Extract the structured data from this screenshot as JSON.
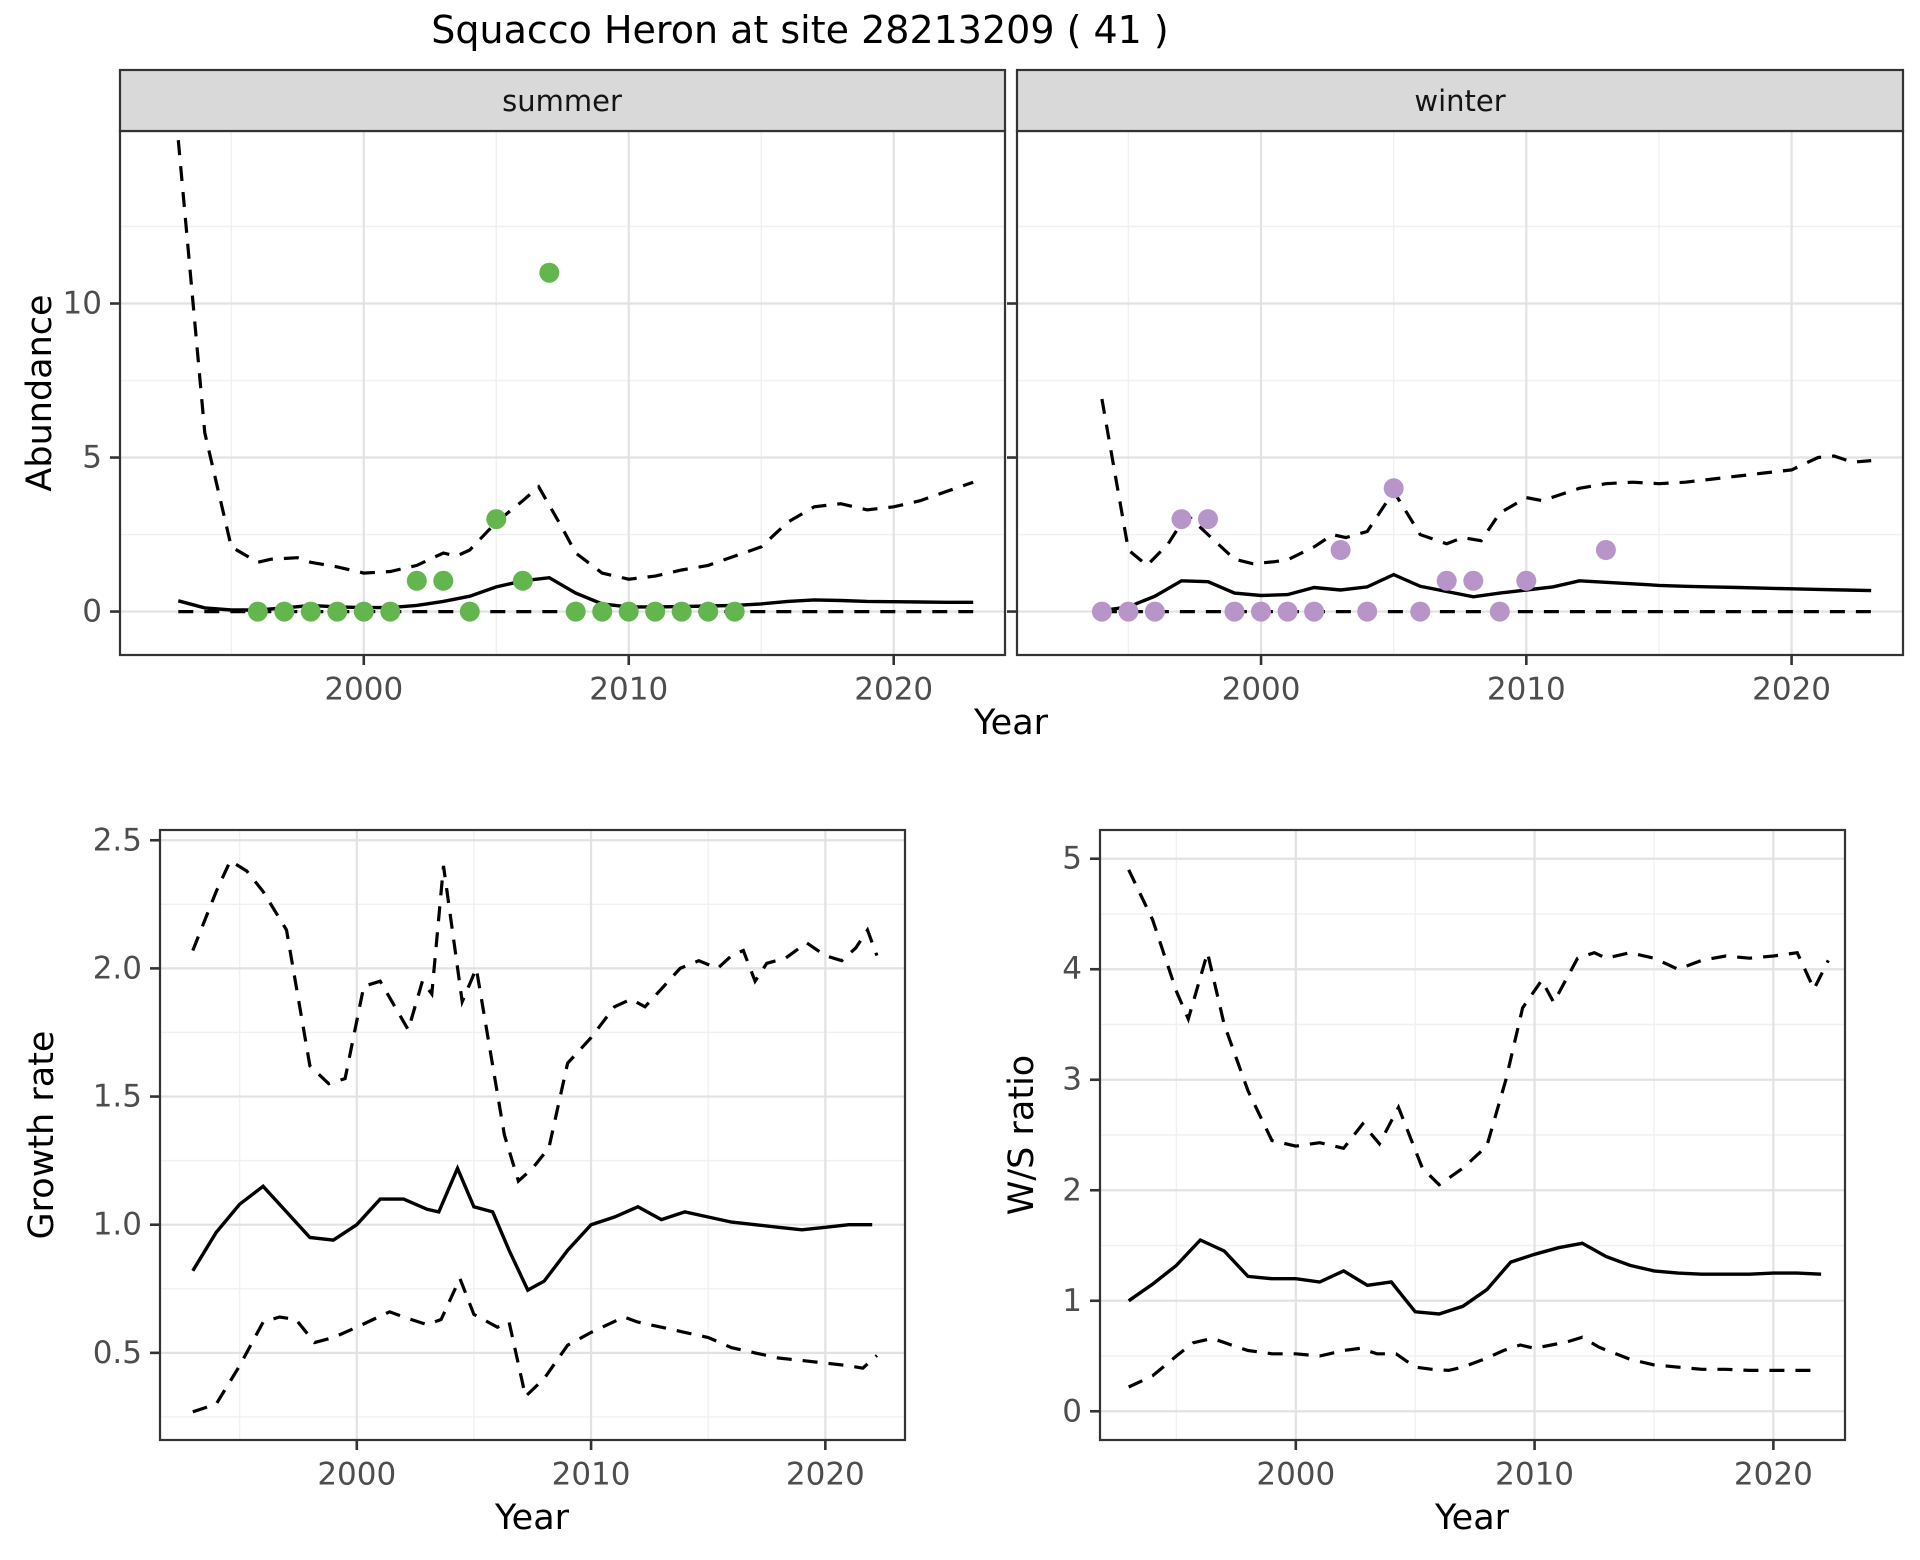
{
  "title": "Squacco Heron at site 28213209 ( 41 )",
  "colors": {
    "summer_point": "#63B64D",
    "winter_point": "#B795C8",
    "line": "#000000",
    "strip_bg": "#D9D9D9",
    "panel_bg": "#FFFFFF",
    "panel_border": "#333333",
    "grid_major": "#E2E2E2",
    "grid_minor": "#F0F0F0",
    "tick_mark": "#333333",
    "tick_text": "#4D4D4D"
  },
  "labels": {
    "facet_summer": "summer",
    "facet_winter": "winter",
    "y_axis_top": "Abundance",
    "x_axis_top": "Year",
    "y_axis_growth": "Growth rate",
    "x_axis_growth": "Year",
    "y_axis_ws": "W/S ratio",
    "x_axis_ws": "Year"
  },
  "chart_data": [
    {
      "id": "abundance-summer",
      "type": "line+scatter",
      "facet": "summer",
      "ylabel": "Abundance",
      "xlabel": "Year",
      "xlim": [
        1990.8,
        2024.2
      ],
      "ylim": [
        -1.41,
        15.6
      ],
      "x_ticks": [
        2000,
        2010,
        2020
      ],
      "x_minor": [
        1995,
        2005,
        2015
      ],
      "y_ticks": [
        0,
        5,
        10
      ],
      "y_minor": [
        2.5,
        7.5,
        12.5
      ],
      "series": [
        {
          "name": "upper_ci",
          "style": "dashed",
          "x": [
            1993,
            1994,
            1995,
            1996,
            1996.5,
            1997.5,
            1998,
            1999,
            2000,
            2001,
            2002,
            2003,
            2003.5,
            2004,
            2005,
            2006,
            2006.6,
            2007.5,
            2008,
            2009,
            2010,
            2011,
            2012,
            2013,
            2014,
            2015,
            2016,
            2017,
            2018,
            2019,
            2020,
            2021,
            2022,
            2023
          ],
          "y": [
            15.3,
            5.8,
            2.1,
            1.6,
            1.7,
            1.75,
            1.6,
            1.45,
            1.25,
            1.3,
            1.5,
            1.9,
            1.8,
            2.0,
            2.9,
            3.6,
            4.05,
            2.7,
            1.9,
            1.25,
            1.05,
            1.15,
            1.35,
            1.5,
            1.8,
            2.1,
            2.9,
            3.4,
            3.5,
            3.3,
            3.4,
            3.6,
            3.9,
            4.2
          ]
        },
        {
          "name": "median",
          "style": "solid",
          "x": [
            1993,
            1994,
            1995,
            1996,
            1997,
            1998,
            1999,
            2000,
            2001,
            2002,
            2003,
            2004,
            2005,
            2006,
            2007,
            2008,
            2009,
            2010,
            2011,
            2012,
            2013,
            2014,
            2015,
            2016,
            2017,
            2018,
            2019,
            2020,
            2021,
            2022,
            2023
          ],
          "y": [
            0.35,
            0.12,
            0.05,
            0.05,
            0.12,
            0.2,
            0.15,
            0.13,
            0.13,
            0.2,
            0.33,
            0.5,
            0.8,
            1.0,
            1.1,
            0.6,
            0.25,
            0.15,
            0.15,
            0.16,
            0.18,
            0.2,
            0.25,
            0.33,
            0.38,
            0.36,
            0.33,
            0.32,
            0.31,
            0.3,
            0.3
          ]
        },
        {
          "name": "lower_ci",
          "style": "dashed",
          "x": [
            1993,
            2023
          ],
          "y": [
            0,
            0
          ]
        }
      ],
      "points": {
        "color_key": "summer_point",
        "years": [
          1996,
          1997,
          1998,
          1999,
          2000,
          2001,
          2002,
          2003,
          2004,
          2005,
          2006,
          2007,
          2008,
          2009,
          2010,
          2011,
          2012,
          2013,
          2014
        ],
        "values": [
          0,
          0,
          0,
          0,
          0,
          0,
          1,
          1,
          0,
          3,
          1,
          11,
          0,
          0,
          0,
          0,
          0,
          0,
          0
        ]
      }
    },
    {
      "id": "abundance-winter",
      "type": "line+scatter",
      "facet": "winter",
      "ylabel": "Abundance",
      "xlabel": "Year",
      "xlim": [
        1990.8,
        2024.2
      ],
      "ylim": [
        -1.41,
        15.6
      ],
      "x_ticks": [
        2000,
        2010,
        2020
      ],
      "x_minor": [
        1995,
        2005,
        2015
      ],
      "y_ticks": [
        0,
        5,
        10
      ],
      "y_minor": [
        2.5,
        7.5,
        12.5
      ],
      "series": [
        {
          "name": "upper_ci",
          "style": "dashed",
          "x": [
            1994,
            1995,
            1995.7,
            1996.5,
            1997.2,
            1998,
            1999,
            1999.7,
            2000.5,
            2001,
            2002,
            2002.7,
            2003.2,
            2004,
            2005,
            2006,
            2007,
            2007.6,
            2008.3,
            2009,
            2010,
            2010.6,
            2011.3,
            2012,
            2013,
            2014,
            2015,
            2016,
            2017,
            2018,
            2019,
            2020,
            2021,
            2021.6,
            2022.3,
            2023
          ],
          "y": [
            6.9,
            2.0,
            1.5,
            2.2,
            3.15,
            2.5,
            1.7,
            1.55,
            1.62,
            1.68,
            2.1,
            2.5,
            2.4,
            2.6,
            3.9,
            2.5,
            2.2,
            2.4,
            2.3,
            3.2,
            3.7,
            3.6,
            3.8,
            4.0,
            4.15,
            4.2,
            4.15,
            4.2,
            4.3,
            4.4,
            4.5,
            4.6,
            5.0,
            5.05,
            4.85,
            4.9
          ]
        },
        {
          "name": "median",
          "style": "solid",
          "x": [
            1994,
            1995,
            1996,
            1997,
            1998,
            1999,
            2000,
            2001,
            2002,
            2003,
            2004,
            2005,
            2006,
            2007,
            2008,
            2009,
            2010,
            2011,
            2012,
            2013,
            2014,
            2015,
            2016,
            2017,
            2018,
            2019,
            2020,
            2021,
            2022,
            2023
          ],
          "y": [
            0.03,
            0.15,
            0.5,
            1.0,
            0.97,
            0.6,
            0.52,
            0.55,
            0.78,
            0.7,
            0.8,
            1.2,
            0.82,
            0.65,
            0.48,
            0.6,
            0.7,
            0.8,
            1.0,
            0.95,
            0.9,
            0.85,
            0.82,
            0.8,
            0.78,
            0.76,
            0.74,
            0.72,
            0.7,
            0.68
          ]
        },
        {
          "name": "lower_ci",
          "style": "dashed",
          "x": [
            1994,
            2023
          ],
          "y": [
            0,
            0
          ]
        }
      ],
      "points": {
        "color_key": "winter_point",
        "years": [
          1994,
          1995,
          1996,
          1997,
          1998,
          1999,
          2000,
          2001,
          2002,
          2003,
          2004,
          2005,
          2006,
          2007,
          2008,
          2009,
          2010,
          2013
        ],
        "values": [
          0,
          0,
          0,
          3,
          3,
          0,
          0,
          0,
          0,
          2,
          0,
          4,
          0,
          1,
          1,
          0,
          1,
          2
        ]
      }
    },
    {
      "id": "growth-rate",
      "type": "line",
      "ylabel": "Growth rate",
      "xlabel": "Year",
      "xlim": [
        1991.6,
        2023.4
      ],
      "ylim": [
        0.16,
        2.54
      ],
      "x_ticks": [
        2000,
        2010,
        2020
      ],
      "x_minor": [
        1995,
        2005,
        2015
      ],
      "y_ticks": [
        0.5,
        1.0,
        1.5,
        2.0,
        2.5
      ],
      "y_tick_labels": [
        "0.5",
        "1.0",
        "1.5",
        "2.0",
        "2.5"
      ],
      "y_minor": [
        0.25,
        0.75,
        1.25,
        1.75,
        2.25
      ],
      "series": [
        {
          "name": "upper_ci",
          "style": "dashed",
          "x": [
            1993,
            1994,
            1994.6,
            1995.3,
            1996,
            1997,
            1998,
            1998.8,
            1999.5,
            2000.3,
            2001,
            2002.2,
            2002.8,
            2003.2,
            2003.7,
            2004.5,
            2005.1,
            2006.3,
            2006.9,
            2007.5,
            2008.2,
            2009,
            2010,
            2011,
            2011.7,
            2012.3,
            2013,
            2013.8,
            2014.6,
            2015.4,
            2016,
            2016.5,
            2017,
            2017.5,
            2018.3,
            2019.2,
            2020,
            2020.7,
            2021.3,
            2021.8,
            2022.2
          ],
          "y": [
            2.07,
            2.3,
            2.42,
            2.38,
            2.3,
            2.15,
            1.62,
            1.55,
            1.57,
            1.93,
            1.95,
            1.76,
            1.95,
            1.9,
            2.4,
            1.87,
            2.0,
            1.35,
            1.17,
            1.22,
            1.3,
            1.63,
            1.73,
            1.85,
            1.88,
            1.85,
            1.92,
            2.0,
            2.03,
            2.0,
            2.05,
            2.07,
            1.95,
            2.02,
            2.04,
            2.1,
            2.05,
            2.03,
            2.08,
            2.15,
            2.05
          ]
        },
        {
          "name": "median",
          "style": "solid",
          "x": [
            1993,
            1994,
            1995,
            1996,
            1997,
            1998,
            1999,
            2000,
            2001,
            2002,
            2003,
            2003.5,
            2004.3,
            2005,
            2005.8,
            2006.5,
            2007.3,
            2008,
            2009,
            2010,
            2011,
            2012,
            2013,
            2014,
            2015,
            2016,
            2017,
            2018,
            2019,
            2020,
            2021,
            2022
          ],
          "y": [
            0.82,
            0.97,
            1.08,
            1.15,
            1.05,
            0.95,
            0.94,
            1.0,
            1.1,
            1.1,
            1.06,
            1.05,
            1.22,
            1.07,
            1.05,
            0.9,
            0.745,
            0.78,
            0.9,
            1.0,
            1.03,
            1.07,
            1.02,
            1.05,
            1.03,
            1.01,
            1.0,
            0.99,
            0.98,
            0.99,
            1.0,
            1.0
          ]
        },
        {
          "name": "lower_ci",
          "style": "dashed",
          "x": [
            1993,
            1994,
            1995,
            1996,
            1996.7,
            1997.4,
            1998.2,
            1999,
            2000,
            2000.7,
            2001.4,
            2002,
            2003,
            2003.6,
            2004.4,
            2005,
            2006,
            2006.5,
            2007.2,
            2008,
            2009,
            2010,
            2010.7,
            2011.4,
            2012,
            2013,
            2014,
            2015,
            2016,
            2017,
            2018,
            2019,
            2020,
            2021,
            2021.6,
            2022.2
          ],
          "y": [
            0.27,
            0.3,
            0.45,
            0.62,
            0.64,
            0.63,
            0.54,
            0.56,
            0.6,
            0.63,
            0.66,
            0.64,
            0.61,
            0.63,
            0.79,
            0.65,
            0.6,
            0.62,
            0.33,
            0.4,
            0.53,
            0.58,
            0.61,
            0.64,
            0.62,
            0.6,
            0.58,
            0.56,
            0.52,
            0.5,
            0.48,
            0.47,
            0.46,
            0.45,
            0.44,
            0.49
          ]
        }
      ]
    },
    {
      "id": "ws-ratio",
      "type": "line",
      "ylabel": "W/S ratio",
      "xlabel": "Year",
      "xlim": [
        1991.8,
        2023.0
      ],
      "ylim": [
        -0.26,
        5.26
      ],
      "x_ticks": [
        2000,
        2010,
        2020
      ],
      "x_minor": [
        1995,
        2005,
        2015
      ],
      "y_ticks": [
        0,
        1,
        2,
        3,
        4,
        5
      ],
      "y_minor": [
        0.5,
        1.5,
        2.5,
        3.5,
        4.5
      ],
      "series": [
        {
          "name": "upper_ci",
          "style": "dashed",
          "x": [
            1993,
            1994,
            1995,
            1995.5,
            1996.3,
            1997,
            1998,
            1999,
            2000,
            2001,
            2002,
            2002.8,
            2003.5,
            2004.3,
            2005.3,
            2006,
            2007,
            2008,
            2008.8,
            2009.5,
            2010.3,
            2010.8,
            2011.8,
            2012.5,
            2013,
            2014,
            2015,
            2016,
            2017,
            2018,
            2019,
            2020,
            2021,
            2021.7,
            2022.3
          ],
          "y": [
            4.9,
            4.45,
            3.8,
            3.55,
            4.15,
            3.5,
            2.9,
            2.45,
            2.4,
            2.43,
            2.38,
            2.6,
            2.42,
            2.75,
            2.2,
            2.05,
            2.2,
            2.4,
            3.0,
            3.65,
            3.9,
            3.7,
            4.1,
            4.15,
            4.1,
            4.15,
            4.1,
            4.0,
            4.08,
            4.12,
            4.1,
            4.12,
            4.15,
            3.82,
            4.08
          ]
        },
        {
          "name": "median",
          "style": "solid",
          "x": [
            1993,
            1994,
            1995,
            1996,
            1997,
            1998,
            1999,
            2000,
            2001,
            2002,
            2003,
            2004,
            2005,
            2006,
            2007,
            2008,
            2009,
            2010,
            2011,
            2012,
            2013,
            2014,
            2015,
            2016,
            2017,
            2018,
            2019,
            2020,
            2021,
            2022
          ],
          "y": [
            1.0,
            1.15,
            1.32,
            1.55,
            1.45,
            1.22,
            1.2,
            1.2,
            1.17,
            1.27,
            1.14,
            1.17,
            0.9,
            0.88,
            0.95,
            1.1,
            1.35,
            1.42,
            1.48,
            1.52,
            1.4,
            1.32,
            1.27,
            1.25,
            1.24,
            1.24,
            1.24,
            1.25,
            1.25,
            1.24
          ]
        },
        {
          "name": "lower_ci",
          "style": "dashed",
          "x": [
            1993,
            1994,
            1995,
            1995.7,
            1996.5,
            1997.3,
            1998,
            1999,
            2000,
            2001,
            2002,
            2002.7,
            2003.4,
            2004.2,
            2005,
            2005.7,
            2006.4,
            2007,
            2008,
            2008.7,
            2009.4,
            2010,
            2010.7,
            2011.4,
            2012,
            2012.7,
            2013.4,
            2014,
            2015,
            2016,
            2017,
            2018,
            2019,
            2020,
            2021,
            2022
          ],
          "y": [
            0.22,
            0.32,
            0.5,
            0.62,
            0.66,
            0.6,
            0.55,
            0.52,
            0.52,
            0.5,
            0.55,
            0.57,
            0.52,
            0.52,
            0.4,
            0.38,
            0.37,
            0.4,
            0.48,
            0.55,
            0.6,
            0.57,
            0.6,
            0.63,
            0.67,
            0.58,
            0.52,
            0.47,
            0.42,
            0.4,
            0.38,
            0.38,
            0.37,
            0.37,
            0.37,
            0.37
          ]
        }
      ]
    }
  ]
}
